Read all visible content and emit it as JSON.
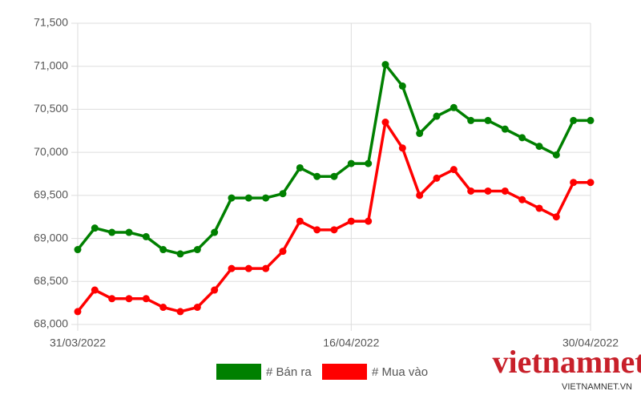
{
  "chart_data": {
    "type": "line",
    "categories": [
      "31/03/2022",
      null,
      null,
      null,
      null,
      null,
      null,
      null,
      null,
      null,
      null,
      null,
      null,
      null,
      null,
      null,
      "16/04/2022",
      null,
      null,
      null,
      null,
      null,
      null,
      null,
      null,
      null,
      null,
      null,
      null,
      null,
      "30/04/2022"
    ],
    "series": [
      {
        "name": "# Bán ra",
        "color": "#008000",
        "values": [
          68870,
          69120,
          69070,
          69070,
          69020,
          68870,
          68820,
          68870,
          69070,
          69470,
          69470,
          69470,
          69520,
          69820,
          69720,
          69720,
          69870,
          69870,
          71020,
          70770,
          70220,
          70420,
          70520,
          70370,
          70370,
          70270,
          70170,
          70070,
          69970,
          70370,
          70370
        ]
      },
      {
        "name": "# Mua vào",
        "color": "#ff0000",
        "values": [
          68150,
          68400,
          68300,
          68300,
          68300,
          68200,
          68150,
          68200,
          68400,
          68650,
          68650,
          68650,
          68850,
          69200,
          69100,
          69100,
          69200,
          69200,
          70350,
          70050,
          69500,
          69700,
          69800,
          69550,
          69550,
          69550,
          69450,
          69350,
          69250,
          69650,
          69650
        ]
      }
    ],
    "ylim": [
      68000,
      71500
    ],
    "yticks": [
      {
        "value": 68000,
        "label": "68,000"
      },
      {
        "value": 68500,
        "label": "68,500"
      },
      {
        "value": 69000,
        "label": "69,000"
      },
      {
        "value": 69500,
        "label": "69,500"
      },
      {
        "value": 70000,
        "label": "70,000"
      },
      {
        "value": 70500,
        "label": "70,500"
      },
      {
        "value": 71000,
        "label": "71,000"
      },
      {
        "value": 71500,
        "label": "71,500"
      }
    ],
    "grid": true,
    "legend": "bottom"
  },
  "watermark": {
    "brand": "vietnamnet",
    "site": "VIETNAMNET.VN"
  }
}
